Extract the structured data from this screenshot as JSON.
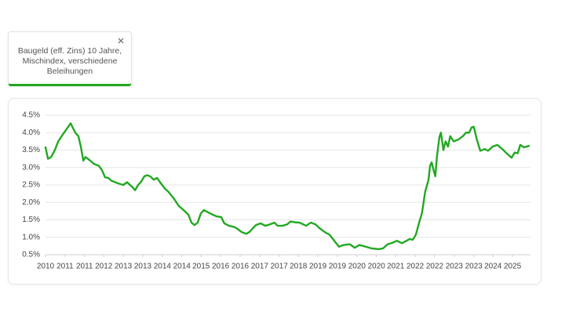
{
  "chart_data": {
    "type": "line",
    "x": [
      2010.0,
      2010.08,
      2010.18,
      2010.3,
      2010.41,
      2010.56,
      2010.68,
      2010.81,
      2010.96,
      2011.06,
      2011.14,
      2011.22,
      2011.29,
      2011.37,
      2011.44,
      2011.57,
      2011.72,
      2011.82,
      2011.92,
      2012.03,
      2012.13,
      2012.33,
      2012.51,
      2012.63,
      2012.79,
      2012.89,
      2012.99,
      2013.09,
      2013.19,
      2013.29,
      2013.39,
      2013.49,
      2013.6,
      2013.72,
      2013.85,
      2013.97,
      2014.15,
      2014.3,
      2014.43,
      2014.61,
      2014.71,
      2014.81,
      2014.91,
      2015.01,
      2015.11,
      2015.22,
      2015.37,
      2015.52,
      2015.67,
      2015.77,
      2015.92,
      2016.08,
      2016.18,
      2016.33,
      2016.48,
      2016.58,
      2016.68,
      2016.79,
      2016.94,
      2017.09,
      2017.24,
      2017.39,
      2017.49,
      2017.65,
      2017.8,
      2017.9,
      2018.05,
      2018.2,
      2018.41,
      2018.56,
      2018.71,
      2018.86,
      2019.01,
      2019.17,
      2019.32,
      2019.47,
      2019.62,
      2019.82,
      2019.98,
      2020.13,
      2020.33,
      2020.53,
      2020.74,
      2020.89,
      2021.04,
      2021.19,
      2021.34,
      2021.5,
      2021.65,
      2021.75,
      2021.85,
      2021.95,
      2022.05,
      2022.15,
      2022.25,
      2022.36,
      2022.41,
      2022.46,
      2022.53,
      2022.58,
      2022.63,
      2022.71,
      2022.76,
      2022.84,
      2022.91,
      2022.99,
      2023.06,
      2023.17,
      2023.32,
      2023.47,
      2023.57,
      2023.67,
      2023.75,
      2023.82,
      2023.92,
      2024.03,
      2024.18,
      2024.28,
      2024.43,
      2024.58,
      2024.74,
      2024.89,
      2025.04,
      2025.14,
      2025.24,
      2025.32,
      2025.44,
      2025.6
    ],
    "series": [
      {
        "name": "Baugeld (eff. Zins) 10 Jahre, Mischindex, verschiedene Beleihungen",
        "color": "#22a822",
        "values": [
          3.58,
          3.25,
          3.3,
          3.5,
          3.75,
          3.95,
          4.1,
          4.27,
          4.0,
          3.9,
          3.6,
          3.2,
          3.3,
          3.25,
          3.2,
          3.1,
          3.05,
          2.93,
          2.72,
          2.7,
          2.62,
          2.55,
          2.5,
          2.58,
          2.45,
          2.35,
          2.5,
          2.6,
          2.75,
          2.78,
          2.74,
          2.65,
          2.7,
          2.55,
          2.4,
          2.3,
          2.1,
          1.9,
          1.8,
          1.65,
          1.42,
          1.35,
          1.42,
          1.68,
          1.78,
          1.73,
          1.66,
          1.6,
          1.58,
          1.4,
          1.33,
          1.3,
          1.25,
          1.15,
          1.1,
          1.15,
          1.25,
          1.35,
          1.4,
          1.33,
          1.37,
          1.42,
          1.33,
          1.33,
          1.37,
          1.45,
          1.43,
          1.42,
          1.33,
          1.42,
          1.37,
          1.25,
          1.15,
          1.07,
          0.9,
          0.73,
          0.78,
          0.8,
          0.7,
          0.78,
          0.73,
          0.68,
          0.66,
          0.68,
          0.8,
          0.84,
          0.9,
          0.83,
          0.9,
          0.95,
          0.93,
          1.07,
          1.4,
          1.7,
          2.3,
          2.65,
          3.05,
          3.15,
          2.9,
          2.75,
          3.3,
          3.87,
          4.0,
          3.5,
          3.75,
          3.6,
          3.9,
          3.75,
          3.8,
          3.9,
          4.0,
          4.0,
          4.15,
          4.17,
          3.8,
          3.48,
          3.53,
          3.48,
          3.6,
          3.65,
          3.53,
          3.4,
          3.28,
          3.43,
          3.41,
          3.65,
          3.58,
          3.62
        ]
      }
    ],
    "xlim": [
      2010,
      2025.65
    ],
    "xticks": [
      {
        "value": 2010.0,
        "label": "2010"
      },
      {
        "value": 2010.63,
        "label": "2011"
      },
      {
        "value": 2011.26,
        "label": "2011"
      },
      {
        "value": 2011.88,
        "label": "2012"
      },
      {
        "value": 2012.51,
        "label": "2013"
      },
      {
        "value": 2013.14,
        "label": "2013"
      },
      {
        "value": 2013.77,
        "label": "2014"
      },
      {
        "value": 2014.4,
        "label": "2014"
      },
      {
        "value": 2015.02,
        "label": "2015"
      },
      {
        "value": 2015.65,
        "label": "2016"
      },
      {
        "value": 2016.28,
        "label": "2016"
      },
      {
        "value": 2016.91,
        "label": "2017"
      },
      {
        "value": 2017.54,
        "label": "2017"
      },
      {
        "value": 2018.16,
        "label": "2018"
      },
      {
        "value": 2018.79,
        "label": "2019"
      },
      {
        "value": 2019.42,
        "label": "2019"
      },
      {
        "value": 2020.05,
        "label": "2020"
      },
      {
        "value": 2020.68,
        "label": "2020"
      },
      {
        "value": 2021.3,
        "label": "2021"
      },
      {
        "value": 2021.93,
        "label": "2022"
      },
      {
        "value": 2022.56,
        "label": "2022"
      },
      {
        "value": 2023.19,
        "label": "2023"
      },
      {
        "value": 2023.82,
        "label": "2023"
      },
      {
        "value": 2024.44,
        "label": "2024"
      },
      {
        "value": 2025.07,
        "label": "2025"
      }
    ],
    "ylim": [
      0.5,
      4.5
    ],
    "yticks": [
      {
        "value": 0.5,
        "label": "0.5%"
      },
      {
        "value": 1.0,
        "label": "1.0%"
      },
      {
        "value": 1.5,
        "label": "1.5%"
      },
      {
        "value": 2.0,
        "label": "2.0%"
      },
      {
        "value": 2.5,
        "label": "2.5%"
      },
      {
        "value": 3.0,
        "label": "3.0%"
      },
      {
        "value": 3.5,
        "label": "3.5%"
      },
      {
        "value": 4.0,
        "label": "4.0%"
      },
      {
        "value": 4.5,
        "label": "4.5%"
      }
    ],
    "grid": true
  }
}
